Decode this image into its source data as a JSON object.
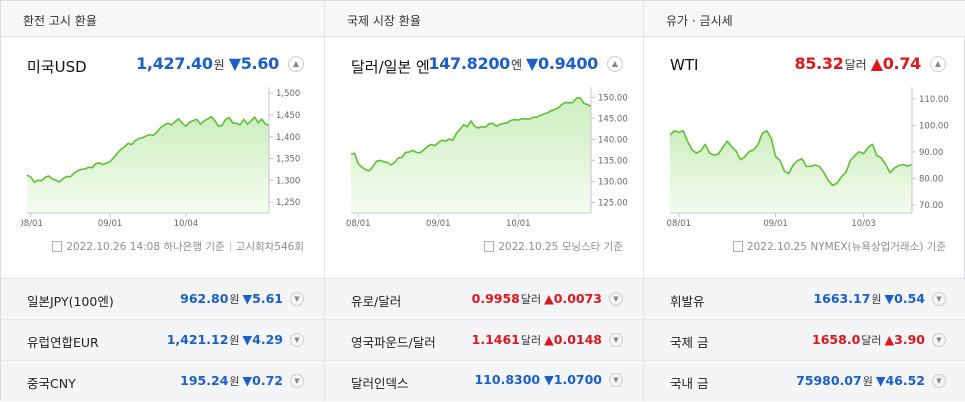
{
  "columns": [
    {
      "header": "환전 고시 환율",
      "main": {
        "name": "미국USD",
        "value": "1,427.40",
        "unit": "원",
        "direction": "down",
        "arrow": "▼",
        "change": "5.60"
      },
      "source": {
        "text": "2022.10.26 14:08 하나은행 기준",
        "extra": "고시회차546회"
      },
      "rows": [
        {
          "name": "일본JPY(100엔)",
          "value": "962.80",
          "unit": "원",
          "direction": "down",
          "arrow": "▼",
          "change": "5.61"
        },
        {
          "name": "유럽연합EUR",
          "value": "1,421.12",
          "unit": "원",
          "direction": "down",
          "arrow": "▼",
          "change": "4.29"
        },
        {
          "name": "중국CNY",
          "value": "195.24",
          "unit": "원",
          "direction": "down",
          "arrow": "▼",
          "change": "0.72"
        }
      ]
    },
    {
      "header": "국제 시장 환율",
      "main": {
        "name": "달러/일본 엔",
        "value": "147.8200",
        "unit": "엔",
        "direction": "down",
        "arrow": "▼",
        "change": "0.9400"
      },
      "source": {
        "text": "2022.10.25 모닝스타 기준",
        "extra": ""
      },
      "rows": [
        {
          "name": "유로/달러",
          "value": "0.9958",
          "unit": "달러",
          "direction": "up",
          "arrow": "▲",
          "change": "0.0073"
        },
        {
          "name": "영국파운드/달러",
          "value": "1.1461",
          "unit": "달러",
          "direction": "up",
          "arrow": "▲",
          "change": "0.0148"
        },
        {
          "name": "달러인덱스",
          "value": "110.8300",
          "unit": "",
          "direction": "down",
          "arrow": "▼",
          "change": "1.0700"
        }
      ]
    },
    {
      "header": "유가 · 금시세",
      "main": {
        "name": "WTI",
        "value": "85.32",
        "unit": "달러",
        "direction": "up",
        "arrow": "▲",
        "change": "0.74"
      },
      "source": {
        "text": "2022.10.25 NYMEX(뉴욕상업거래소) 기준",
        "extra": ""
      },
      "rows": [
        {
          "name": "휘발유",
          "value": "1663.17",
          "unit": "원",
          "direction": "down",
          "arrow": "▼",
          "change": "0.54"
        },
        {
          "name": "국제 금",
          "value": "1658.0",
          "unit": "달러",
          "direction": "up",
          "arrow": "▲",
          "change": "3.90"
        },
        {
          "name": "국내 금",
          "value": "75980.07",
          "unit": "원",
          "direction": "down",
          "arrow": "▼",
          "change": "46.52"
        }
      ]
    }
  ],
  "colors": {
    "up": "#e0161c",
    "down": "#1a5fcc",
    "line": "#5cc130",
    "fill_top": "#cdeec0",
    "fill_bottom": "#f4fcf0"
  },
  "chart_data": [
    {
      "type": "area",
      "x_ticks": [
        "08/01",
        "09/01",
        "10/04"
      ],
      "y_ticks": [
        "1,500",
        "1,450",
        "1,400",
        "1,350",
        "1,300",
        "1,250"
      ],
      "ylim": [
        1225,
        1505
      ],
      "x_tick_pos": [
        1,
        23,
        44
      ],
      "values": [
        1312,
        1308,
        1296,
        1300,
        1299,
        1307,
        1310,
        1303,
        1300,
        1296,
        1304,
        1309,
        1308,
        1316,
        1322,
        1325,
        1326,
        1330,
        1329,
        1338,
        1340,
        1336,
        1339,
        1343,
        1352,
        1362,
        1371,
        1377,
        1385,
        1382,
        1391,
        1396,
        1398,
        1402,
        1405,
        1403,
        1411,
        1421,
        1427,
        1431,
        1427,
        1435,
        1441,
        1431,
        1424,
        1433,
        1437,
        1440,
        1429,
        1436,
        1441,
        1446,
        1437,
        1424,
        1426,
        1440,
        1444,
        1431,
        1431,
        1427,
        1440,
        1429,
        1436,
        1445,
        1432,
        1441,
        1429,
        1427
      ]
    },
    {
      "type": "area",
      "x_ticks": [
        "08/01",
        "09/01",
        "10/01"
      ],
      "y_ticks": [
        "150.00",
        "145.00",
        "140.00",
        "135.00",
        "130.00",
        "125.00"
      ],
      "ylim": [
        122.5,
        151.5
      ],
      "x_tick_pos": [
        2,
        24,
        46
      ],
      "values": [
        136.5,
        136.7,
        134.2,
        133.4,
        132.8,
        132.5,
        133.5,
        134.8,
        135.0,
        134.7,
        134.5,
        133.9,
        134.5,
        135.6,
        135.7,
        136.9,
        137.0,
        137.4,
        136.9,
        136.8,
        137.5,
        138.3,
        138.8,
        138.5,
        139.2,
        139.8,
        139.6,
        140.1,
        139.8,
        141.5,
        142.4,
        143.5,
        143.0,
        144.4,
        143.1,
        142.7,
        143.0,
        142.9,
        143.7,
        143.8,
        143.1,
        143.6,
        143.8,
        144.0,
        144.5,
        144.7,
        144.6,
        144.9,
        144.9,
        144.8,
        145.2,
        145.3,
        145.6,
        146.0,
        146.3,
        146.8,
        147.1,
        147.5,
        148.3,
        148.8,
        148.7,
        148.8,
        149.8,
        149.9,
        148.6,
        148.3,
        147.8
      ]
    },
    {
      "type": "area",
      "x_ticks": [
        "08/01",
        "09/01",
        "10/03"
      ],
      "y_ticks": [
        "110.00",
        "100.00",
        "90.00",
        "80.00",
        "70.00"
      ],
      "ylim": [
        67,
        113
      ],
      "x_tick_pos": [
        2,
        24,
        44
      ],
      "values": [
        96.4,
        98.0,
        97.4,
        98.0,
        94.0,
        90.8,
        89.6,
        90.4,
        92.9,
        89.6,
        88.8,
        89.2,
        91.8,
        94.1,
        92.0,
        90.4,
        87.1,
        88.2,
        90.2,
        90.8,
        92.8,
        97.1,
        98.0,
        95.2,
        88.3,
        86.8,
        82.8,
        81.9,
        85.1,
        86.8,
        87.4,
        84.6,
        84.6,
        85.1,
        84.5,
        82.2,
        79.2,
        77.4,
        78.3,
        80.7,
        82.4,
        86.8,
        88.6,
        90.1,
        89.4,
        91.6,
        92.9,
        88.7,
        87.8,
        85.4,
        82.2,
        83.9,
        84.9,
        85.3,
        84.6,
        85.3
      ]
    }
  ]
}
